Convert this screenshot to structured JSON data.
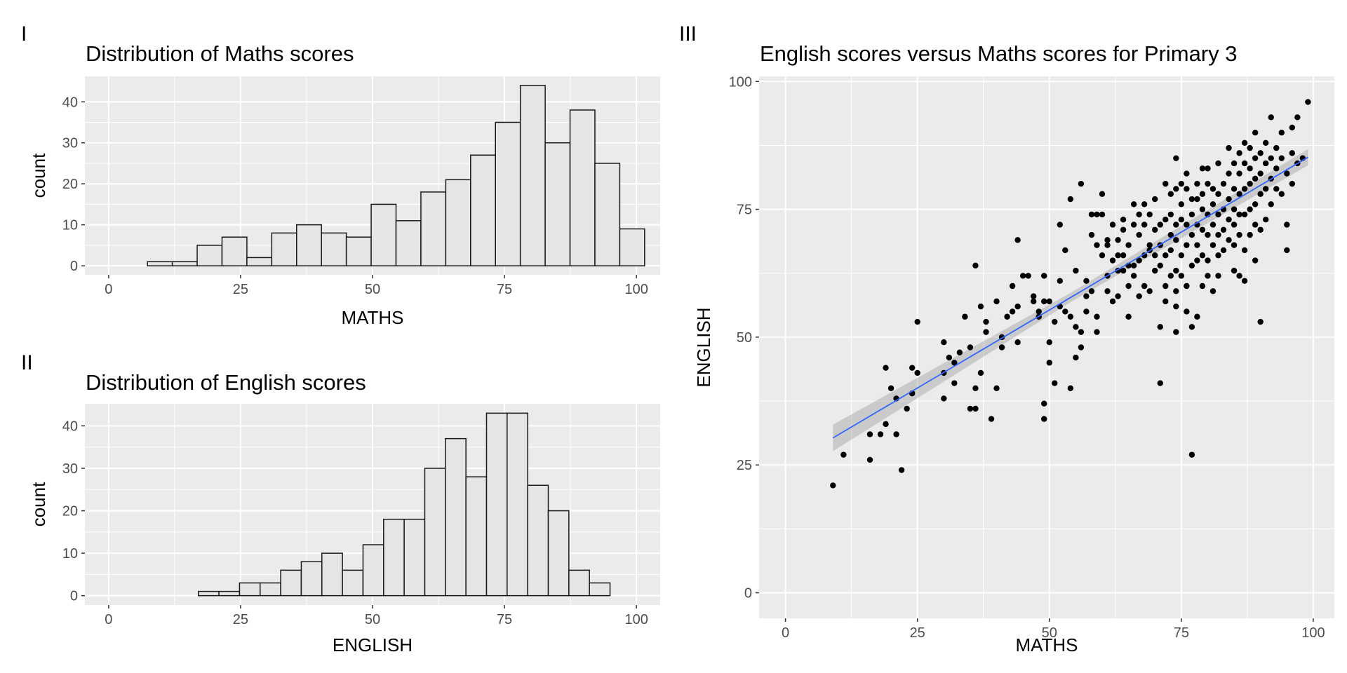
{
  "chart_data": [
    {
      "panel_tag": "I",
      "type": "bar",
      "title": "Distribution of Maths scores",
      "xlabel": "MATHS",
      "ylabel": "count",
      "xlim": [
        -4.5,
        104.5
      ],
      "ylim": [
        -2.2,
        46.2
      ],
      "xticks": [
        0,
        25,
        50,
        75,
        100
      ],
      "yticks": [
        0,
        10,
        20,
        30,
        40
      ],
      "bin_width": 4.71,
      "bin_centers": [
        9.71,
        14.42,
        19.13,
        23.84,
        28.55,
        33.26,
        37.97,
        42.68,
        47.39,
        52.1,
        56.81,
        61.52,
        66.23,
        70.94,
        75.65,
        80.36,
        85.07,
        89.78,
        94.49,
        99.2
      ],
      "counts": [
        1,
        1,
        5,
        7,
        2,
        8,
        10,
        8,
        7,
        15,
        11,
        18,
        21,
        27,
        35,
        44,
        30,
        38,
        25,
        9
      ],
      "grid": true
    },
    {
      "panel_tag": "II",
      "type": "bar",
      "title": "Distribution of English scores",
      "xlabel": "ENGLISH",
      "ylabel": "count",
      "xlim": [
        -4.5,
        104.5
      ],
      "ylim": [
        -2.2,
        45.2
      ],
      "xticks": [
        0,
        25,
        50,
        75,
        100
      ],
      "yticks": [
        0,
        10,
        20,
        30,
        40
      ],
      "bin_width": 3.9,
      "bin_centers": [
        18.95,
        22.85,
        26.75,
        30.65,
        34.55,
        38.45,
        42.35,
        46.25,
        50.15,
        54.05,
        57.95,
        61.85,
        65.75,
        69.65,
        73.55,
        77.45,
        81.35,
        85.25,
        89.15,
        93.05
      ],
      "counts": [
        1,
        1,
        3,
        3,
        6,
        8,
        10,
        6,
        12,
        18,
        18,
        30,
        37,
        28,
        43,
        43,
        26,
        20,
        6,
        3
      ],
      "grid": true
    },
    {
      "panel_tag": "III",
      "type": "scatter",
      "title": "English scores versus Maths scores for Primary 3",
      "xlabel": "MATHS",
      "ylabel": "ENGLISH",
      "xlim": [
        -5,
        104
      ],
      "ylim": [
        -5,
        101
      ],
      "xticks": [
        0,
        25,
        50,
        75,
        100
      ],
      "yticks": [
        0,
        25,
        50,
        75,
        100
      ],
      "points": [
        [
          9,
          21
        ],
        [
          11,
          27
        ],
        [
          16,
          26
        ],
        [
          18,
          31
        ],
        [
          19,
          33
        ],
        [
          16,
          31
        ],
        [
          22,
          24
        ],
        [
          19,
          44
        ],
        [
          20,
          40
        ],
        [
          21,
          31
        ],
        [
          21,
          38
        ],
        [
          23,
          36
        ],
        [
          24,
          39
        ],
        [
          24,
          44
        ],
        [
          25,
          53
        ],
        [
          25,
          43
        ],
        [
          30,
          43
        ],
        [
          30,
          38
        ],
        [
          30,
          49
        ],
        [
          31,
          46
        ],
        [
          32,
          41
        ],
        [
          32,
          45
        ],
        [
          33,
          47
        ],
        [
          34,
          54
        ],
        [
          35,
          48
        ],
        [
          35,
          36
        ],
        [
          36,
          36
        ],
        [
          36,
          40
        ],
        [
          36,
          64
        ],
        [
          37,
          43
        ],
        [
          37,
          56
        ],
        [
          38,
          51
        ],
        [
          38,
          53
        ],
        [
          39,
          34
        ],
        [
          40,
          40
        ],
        [
          40,
          57
        ],
        [
          41,
          48
        ],
        [
          41,
          50
        ],
        [
          42,
          54
        ],
        [
          43,
          60
        ],
        [
          43,
          55
        ],
        [
          44,
          69
        ],
        [
          44,
          49
        ],
        [
          44,
          56
        ],
        [
          45,
          62
        ],
        [
          46,
          62
        ],
        [
          47,
          57
        ],
        [
          47,
          58
        ],
        [
          48,
          54
        ],
        [
          48,
          55
        ],
        [
          49,
          37
        ],
        [
          49,
          34
        ],
        [
          49,
          57
        ],
        [
          49,
          62
        ],
        [
          50,
          57
        ],
        [
          50,
          45
        ],
        [
          50,
          49
        ],
        [
          51,
          41
        ],
        [
          51,
          53
        ],
        [
          52,
          56
        ],
        [
          52,
          72
        ],
        [
          52,
          61
        ],
        [
          53,
          55
        ],
        [
          53,
          67
        ],
        [
          54,
          54
        ],
        [
          54,
          77
        ],
        [
          54,
          40
        ],
        [
          55,
          46
        ],
        [
          55,
          52
        ],
        [
          55,
          63
        ],
        [
          56,
          48
        ],
        [
          56,
          51
        ],
        [
          56,
          80
        ],
        [
          57,
          55
        ],
        [
          57,
          58
        ],
        [
          57,
          61
        ],
        [
          58,
          59
        ],
        [
          58,
          74
        ],
        [
          58,
          70
        ],
        [
          59,
          68
        ],
        [
          59,
          74
        ],
        [
          59,
          51
        ],
        [
          59,
          54
        ],
        [
          60,
          74
        ],
        [
          60,
          78
        ],
        [
          60,
          66
        ],
        [
          61,
          59
        ],
        [
          61,
          62
        ],
        [
          61,
          68
        ],
        [
          61,
          69
        ],
        [
          62,
          57
        ],
        [
          62,
          65
        ],
        [
          62,
          72
        ],
        [
          63,
          58
        ],
        [
          63,
          63
        ],
        [
          63,
          66
        ],
        [
          63,
          69
        ],
        [
          64,
          63
        ],
        [
          64,
          66
        ],
        [
          64,
          73
        ],
        [
          64,
          71
        ],
        [
          65,
          60
        ],
        [
          65,
          64
        ],
        [
          65,
          54
        ],
        [
          65,
          68
        ],
        [
          66,
          62
        ],
        [
          66,
          72
        ],
        [
          66,
          76
        ],
        [
          66,
          64
        ],
        [
          67,
          65
        ],
        [
          67,
          70
        ],
        [
          67,
          74
        ],
        [
          67,
          58
        ],
        [
          68,
          60
        ],
        [
          68,
          66
        ],
        [
          68,
          72
        ],
        [
          68,
          76
        ],
        [
          69,
          67
        ],
        [
          69,
          68
        ],
        [
          69,
          74
        ],
        [
          69,
          59
        ],
        [
          70,
          63
        ],
        [
          70,
          66
        ],
        [
          70,
          71
        ],
        [
          70,
          77
        ],
        [
          71,
          41
        ],
        [
          71,
          52
        ],
        [
          71,
          64
        ],
        [
          71,
          68
        ],
        [
          71,
          72
        ],
        [
          72,
          57
        ],
        [
          72,
          60
        ],
        [
          72,
          66
        ],
        [
          72,
          73
        ],
        [
          72,
          80
        ],
        [
          73,
          62
        ],
        [
          73,
          67
        ],
        [
          73,
          70
        ],
        [
          73,
          74
        ],
        [
          73,
          78
        ],
        [
          74,
          51
        ],
        [
          74,
          56
        ],
        [
          74,
          59
        ],
        [
          74,
          63
        ],
        [
          74,
          69
        ],
        [
          74,
          72
        ],
        [
          74,
          79
        ],
        [
          74,
          85
        ],
        [
          75,
          62
        ],
        [
          75,
          66
        ],
        [
          75,
          73
        ],
        [
          75,
          76
        ],
        [
          75,
          80
        ],
        [
          76,
          55
        ],
        [
          76,
          60
        ],
        [
          76,
          68
        ],
        [
          76,
          72
        ],
        [
          76,
          79
        ],
        [
          76,
          82
        ],
        [
          77,
          27
        ],
        [
          77,
          52
        ],
        [
          77,
          64
        ],
        [
          77,
          70
        ],
        [
          77,
          74
        ],
        [
          77,
          77
        ],
        [
          78,
          54
        ],
        [
          78,
          65
        ],
        [
          78,
          68
        ],
        [
          78,
          72
        ],
        [
          78,
          77
        ],
        [
          78,
          80
        ],
        [
          79,
          60
        ],
        [
          79,
          66
        ],
        [
          79,
          71
        ],
        [
          79,
          75
        ],
        [
          79,
          78
        ],
        [
          79,
          83
        ],
        [
          80,
          62
        ],
        [
          80,
          65
        ],
        [
          80,
          70
        ],
        [
          80,
          74
        ],
        [
          80,
          80
        ],
        [
          80,
          83
        ],
        [
          81,
          59
        ],
        [
          81,
          68
        ],
        [
          81,
          72
        ],
        [
          81,
          76
        ],
        [
          81,
          79
        ],
        [
          82,
          62
        ],
        [
          82,
          66
        ],
        [
          82,
          70
        ],
        [
          82,
          74
        ],
        [
          82,
          78
        ],
        [
          82,
          84
        ],
        [
          83,
          67
        ],
        [
          83,
          71
        ],
        [
          83,
          75
        ],
        [
          83,
          80
        ],
        [
          84,
          69
        ],
        [
          84,
          73
        ],
        [
          84,
          77
        ],
        [
          84,
          82
        ],
        [
          84,
          87
        ],
        [
          85,
          63
        ],
        [
          85,
          68
        ],
        [
          85,
          72
        ],
        [
          85,
          75
        ],
        [
          85,
          79
        ],
        [
          85,
          84
        ],
        [
          86,
          62
        ],
        [
          86,
          70
        ],
        [
          86,
          74
        ],
        [
          86,
          78
        ],
        [
          86,
          82
        ],
        [
          86,
          86
        ],
        [
          87,
          61
        ],
        [
          87,
          67
        ],
        [
          87,
          74
        ],
        [
          87,
          79
        ],
        [
          87,
          84
        ],
        [
          87,
          88
        ],
        [
          88,
          70
        ],
        [
          88,
          75
        ],
        [
          88,
          80
        ],
        [
          88,
          83
        ],
        [
          88,
          87
        ],
        [
          89,
          65
        ],
        [
          89,
          72
        ],
        [
          89,
          76
        ],
        [
          89,
          81
        ],
        [
          89,
          85
        ],
        [
          89,
          90
        ],
        [
          90,
          53
        ],
        [
          90,
          71
        ],
        [
          90,
          78
        ],
        [
          90,
          82
        ],
        [
          90,
          86
        ],
        [
          91,
          73
        ],
        [
          91,
          79
        ],
        [
          91,
          84
        ],
        [
          91,
          88
        ],
        [
          92,
          76
        ],
        [
          92,
          81
        ],
        [
          92,
          85
        ],
        [
          92,
          93
        ],
        [
          93,
          79
        ],
        [
          93,
          83
        ],
        [
          93,
          87
        ],
        [
          94,
          78
        ],
        [
          94,
          85
        ],
        [
          94,
          90
        ],
        [
          95,
          67
        ],
        [
          95,
          72
        ],
        [
          95,
          82
        ],
        [
          96,
          80
        ],
        [
          96,
          86
        ],
        [
          96,
          91
        ],
        [
          97,
          84
        ],
        [
          97,
          93
        ],
        [
          98,
          85
        ],
        [
          99,
          96
        ]
      ],
      "trend": {
        "method": "linear",
        "intercept": 24.8,
        "slope": 0.61,
        "x_range": [
          9,
          99
        ],
        "se_band": [
          [
            9,
            2.6
          ],
          [
            54,
            0.9
          ],
          [
            99,
            1.6
          ]
        ]
      },
      "grid": true
    }
  ],
  "colors": {
    "panel_bg": "#ebebeb",
    "grid": "#ffffff",
    "bar_fill": "#e5e5e5",
    "bar_stroke": "#1a1a1a",
    "point": "#000000",
    "trend_line": "#3366ff",
    "se_band": "#999999",
    "tick_text": "#4d4d4d"
  }
}
